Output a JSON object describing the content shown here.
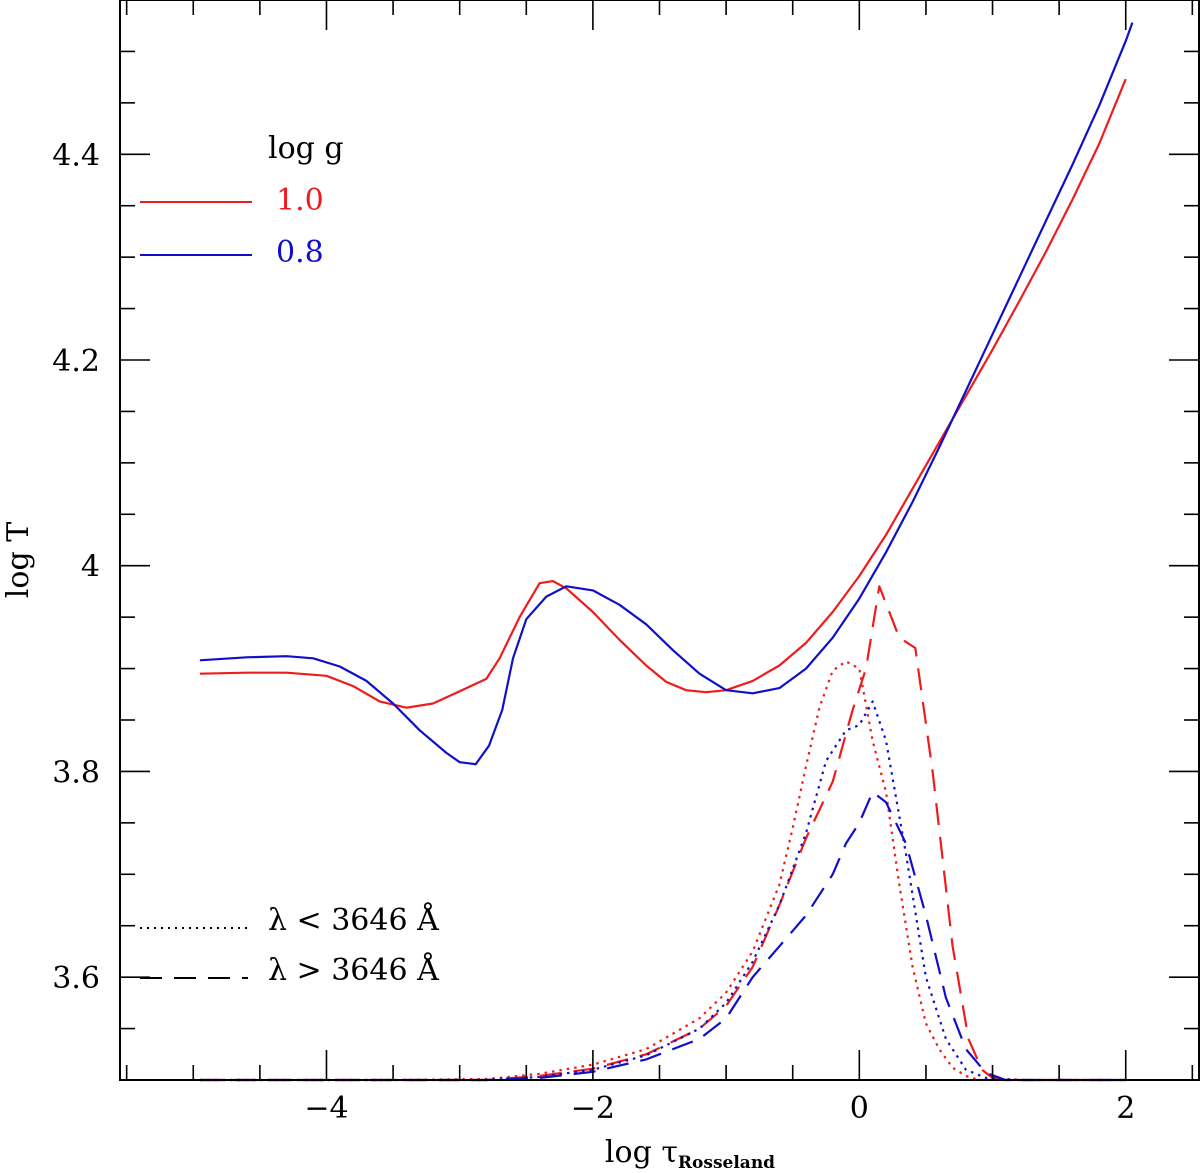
{
  "chart_data": {
    "type": "line",
    "xlabel_main": "log  τ",
    "xlabel_sub": "Rosseland",
    "ylabel": "log T",
    "xlim": [
      -5.55,
      2.55
    ],
    "ylim": [
      3.5,
      4.55
    ],
    "x_ticks": [
      -4,
      -2,
      0,
      2
    ],
    "x_tick_labels": [
      "−4",
      "−2",
      "0",
      "2"
    ],
    "y_ticks": [
      3.6,
      3.8,
      4.0,
      4.2,
      4.4
    ],
    "y_tick_labels": [
      "3.6",
      "3.8",
      "4",
      "4.2",
      "4.4"
    ],
    "legend_title": "log  g",
    "legend_entries": [
      {
        "label": "1.0",
        "color": "#ee1c1c"
      },
      {
        "label": "0.8",
        "color": "#1010c8"
      }
    ],
    "style_legend": [
      {
        "label": "λ  <  3646  Å",
        "dash": "dotted"
      },
      {
        "label": "λ  >  3646  Å",
        "dash": "dashed"
      }
    ],
    "series": [
      {
        "name": "log g 1.0 temperature",
        "color": "#ee1c1c",
        "dash": "solid",
        "points": [
          [
            -4.95,
            3.895
          ],
          [
            -4.6,
            3.896
          ],
          [
            -4.3,
            3.896
          ],
          [
            -4.0,
            3.893
          ],
          [
            -3.8,
            3.883
          ],
          [
            -3.6,
            3.868
          ],
          [
            -3.4,
            3.862
          ],
          [
            -3.2,
            3.866
          ],
          [
            -3.0,
            3.878
          ],
          [
            -2.8,
            3.89
          ],
          [
            -2.7,
            3.91
          ],
          [
            -2.55,
            3.95
          ],
          [
            -2.4,
            3.983
          ],
          [
            -2.3,
            3.985
          ],
          [
            -2.2,
            3.978
          ],
          [
            -2.0,
            3.955
          ],
          [
            -1.8,
            3.928
          ],
          [
            -1.6,
            3.903
          ],
          [
            -1.45,
            3.887
          ],
          [
            -1.3,
            3.879
          ],
          [
            -1.15,
            3.877
          ],
          [
            -1.0,
            3.879
          ],
          [
            -0.8,
            3.888
          ],
          [
            -0.6,
            3.903
          ],
          [
            -0.4,
            3.925
          ],
          [
            -0.2,
            3.955
          ],
          [
            0.0,
            3.99
          ],
          [
            0.2,
            4.03
          ],
          [
            0.4,
            4.075
          ],
          [
            0.6,
            4.12
          ],
          [
            0.8,
            4.165
          ],
          [
            1.0,
            4.21
          ],
          [
            1.2,
            4.257
          ],
          [
            1.4,
            4.305
          ],
          [
            1.6,
            4.356
          ],
          [
            1.8,
            4.41
          ],
          [
            2.0,
            4.473
          ]
        ]
      },
      {
        "name": "log g 0.8 temperature",
        "color": "#1010c8",
        "dash": "solid",
        "points": [
          [
            -4.95,
            3.908
          ],
          [
            -4.6,
            3.911
          ],
          [
            -4.3,
            3.912
          ],
          [
            -4.1,
            3.91
          ],
          [
            -3.9,
            3.902
          ],
          [
            -3.7,
            3.888
          ],
          [
            -3.5,
            3.866
          ],
          [
            -3.3,
            3.84
          ],
          [
            -3.1,
            3.818
          ],
          [
            -3.0,
            3.809
          ],
          [
            -2.88,
            3.807
          ],
          [
            -2.78,
            3.825
          ],
          [
            -2.68,
            3.86
          ],
          [
            -2.6,
            3.91
          ],
          [
            -2.5,
            3.948
          ],
          [
            -2.35,
            3.97
          ],
          [
            -2.2,
            3.98
          ],
          [
            -2.0,
            3.976
          ],
          [
            -1.8,
            3.962
          ],
          [
            -1.6,
            3.943
          ],
          [
            -1.4,
            3.918
          ],
          [
            -1.2,
            3.895
          ],
          [
            -1.0,
            3.879
          ],
          [
            -0.8,
            3.876
          ],
          [
            -0.6,
            3.881
          ],
          [
            -0.4,
            3.9
          ],
          [
            -0.2,
            3.93
          ],
          [
            0.0,
            3.968
          ],
          [
            0.2,
            4.013
          ],
          [
            0.4,
            4.062
          ],
          [
            0.6,
            4.115
          ],
          [
            0.8,
            4.17
          ],
          [
            1.0,
            4.225
          ],
          [
            1.2,
            4.28
          ],
          [
            1.4,
            4.335
          ],
          [
            1.6,
            4.39
          ],
          [
            1.8,
            4.447
          ],
          [
            2.0,
            4.51
          ],
          [
            2.05,
            4.528
          ]
        ]
      },
      {
        "name": "log g 1.0 lambda < 3646",
        "color": "#ee1c1c",
        "dash": "dotted",
        "points": [
          [
            -4.95,
            3.5
          ],
          [
            -3.5,
            3.5
          ],
          [
            -2.8,
            3.501
          ],
          [
            -2.4,
            3.506
          ],
          [
            -2.0,
            3.515
          ],
          [
            -1.6,
            3.53
          ],
          [
            -1.2,
            3.56
          ],
          [
            -1.0,
            3.585
          ],
          [
            -0.8,
            3.625
          ],
          [
            -0.6,
            3.69
          ],
          [
            -0.5,
            3.745
          ],
          [
            -0.4,
            3.805
          ],
          [
            -0.3,
            3.862
          ],
          [
            -0.2,
            3.898
          ],
          [
            -0.1,
            3.907
          ],
          [
            0.0,
            3.9
          ],
          [
            0.1,
            3.83
          ],
          [
            0.2,
            3.78
          ],
          [
            0.3,
            3.69
          ],
          [
            0.4,
            3.61
          ],
          [
            0.5,
            3.555
          ],
          [
            0.6,
            3.53
          ],
          [
            0.7,
            3.512
          ],
          [
            0.8,
            3.504
          ],
          [
            0.9,
            3.5
          ],
          [
            1.2,
            3.5
          ],
          [
            2.0,
            3.5
          ]
        ]
      },
      {
        "name": "log g 1.0 lambda > 3646",
        "color": "#ee1c1c",
        "dash": "dashed",
        "points": [
          [
            -4.95,
            3.5
          ],
          [
            -3.5,
            3.5
          ],
          [
            -2.8,
            3.5
          ],
          [
            -2.4,
            3.504
          ],
          [
            -2.0,
            3.511
          ],
          [
            -1.6,
            3.525
          ],
          [
            -1.2,
            3.55
          ],
          [
            -1.0,
            3.572
          ],
          [
            -0.8,
            3.61
          ],
          [
            -0.6,
            3.67
          ],
          [
            -0.4,
            3.735
          ],
          [
            -0.2,
            3.79
          ],
          [
            -0.05,
            3.86
          ],
          [
            0.05,
            3.9
          ],
          [
            0.15,
            3.98
          ],
          [
            0.3,
            3.93
          ],
          [
            0.42,
            3.92
          ],
          [
            0.55,
            3.8
          ],
          [
            0.7,
            3.63
          ],
          [
            0.82,
            3.54
          ],
          [
            0.92,
            3.51
          ],
          [
            1.0,
            3.502
          ],
          [
            1.2,
            3.5
          ],
          [
            2.0,
            3.5
          ]
        ]
      },
      {
        "name": "log g 0.8 lambda < 3646",
        "color": "#1010c8",
        "dash": "dotted",
        "points": [
          [
            -4.95,
            3.5
          ],
          [
            -3.5,
            3.5
          ],
          [
            -2.8,
            3.5
          ],
          [
            -2.4,
            3.503
          ],
          [
            -2.0,
            3.51
          ],
          [
            -1.6,
            3.524
          ],
          [
            -1.2,
            3.55
          ],
          [
            -1.0,
            3.575
          ],
          [
            -0.8,
            3.615
          ],
          [
            -0.6,
            3.67
          ],
          [
            -0.4,
            3.74
          ],
          [
            -0.25,
            3.81
          ],
          [
            -0.1,
            3.84
          ],
          [
            0.0,
            3.845
          ],
          [
            0.1,
            3.868
          ],
          [
            0.2,
            3.83
          ],
          [
            0.35,
            3.72
          ],
          [
            0.5,
            3.6
          ],
          [
            0.65,
            3.54
          ],
          [
            0.8,
            3.51
          ],
          [
            0.95,
            3.502
          ],
          [
            1.2,
            3.5
          ],
          [
            2.0,
            3.5
          ]
        ]
      },
      {
        "name": "log g 0.8 lambda > 3646",
        "color": "#1010c8",
        "dash": "dashed",
        "points": [
          [
            -4.95,
            3.5
          ],
          [
            -3.5,
            3.5
          ],
          [
            -2.8,
            3.5
          ],
          [
            -2.4,
            3.502
          ],
          [
            -2.0,
            3.508
          ],
          [
            -1.6,
            3.52
          ],
          [
            -1.2,
            3.54
          ],
          [
            -1.0,
            3.56
          ],
          [
            -0.8,
            3.6
          ],
          [
            -0.6,
            3.63
          ],
          [
            -0.4,
            3.66
          ],
          [
            -0.2,
            3.7
          ],
          [
            -0.1,
            3.73
          ],
          [
            0.0,
            3.75
          ],
          [
            0.1,
            3.78
          ],
          [
            0.2,
            3.77
          ],
          [
            0.35,
            3.73
          ],
          [
            0.5,
            3.66
          ],
          [
            0.65,
            3.58
          ],
          [
            0.8,
            3.53
          ],
          [
            0.95,
            3.507
          ],
          [
            1.1,
            3.5
          ],
          [
            2.0,
            3.5
          ]
        ]
      }
    ]
  }
}
